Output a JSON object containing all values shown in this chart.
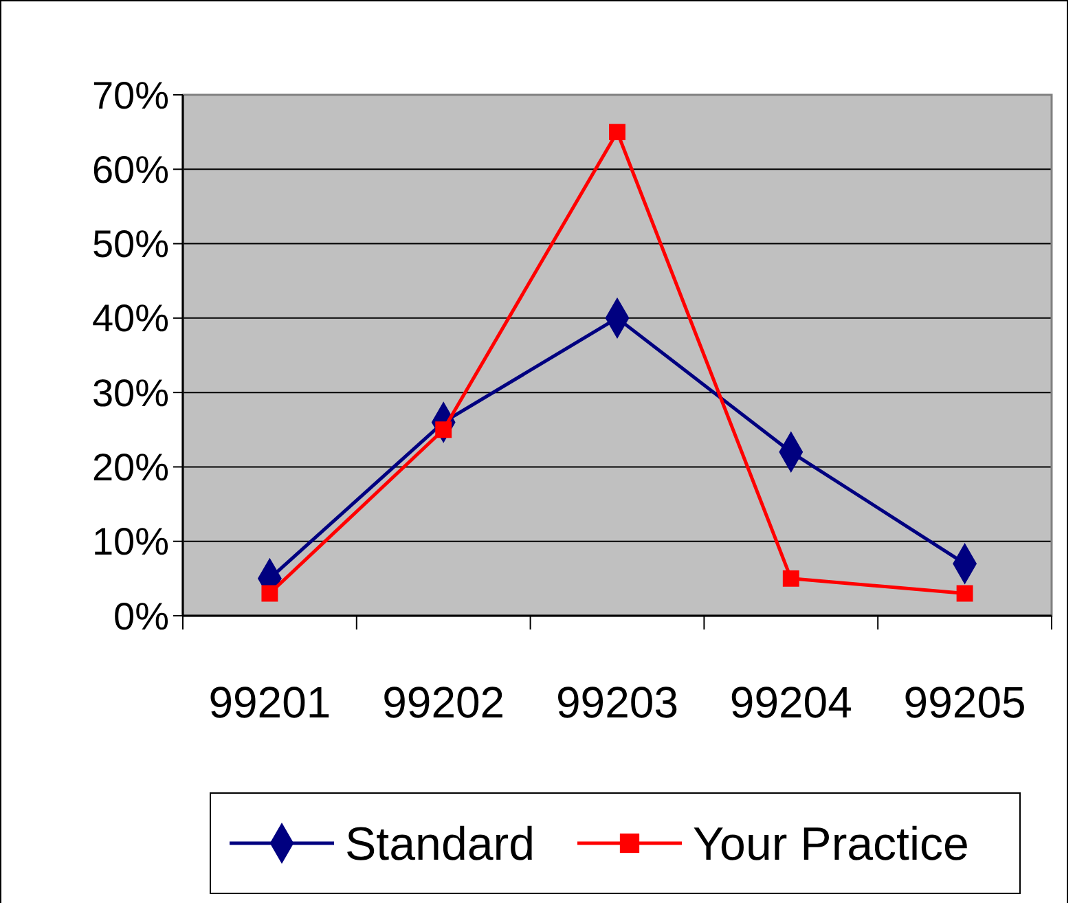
{
  "chart_data": {
    "type": "line",
    "categories": [
      "99201",
      "99202",
      "99203",
      "99204",
      "99205"
    ],
    "series": [
      {
        "name": "Standard",
        "color": "#000080",
        "values": [
          5,
          26,
          40,
          22,
          7
        ],
        "marker": "diamond"
      },
      {
        "name": "Your Practice",
        "color": "#ff0000",
        "values": [
          3,
          25,
          65,
          5,
          3
        ],
        "marker": "square"
      }
    ],
    "ylim": [
      0,
      70
    ],
    "yticks": [
      {
        "value": 0,
        "label": "0%"
      },
      {
        "value": 10,
        "label": "10%"
      },
      {
        "value": 20,
        "label": "20%"
      },
      {
        "value": 30,
        "label": "30%"
      },
      {
        "value": 40,
        "label": "40%"
      },
      {
        "value": 50,
        "label": "50%"
      },
      {
        "value": 60,
        "label": "60%"
      },
      {
        "value": 70,
        "label": "70%"
      }
    ],
    "grid": "y",
    "legend": "bottom",
    "line_style": "solid"
  }
}
